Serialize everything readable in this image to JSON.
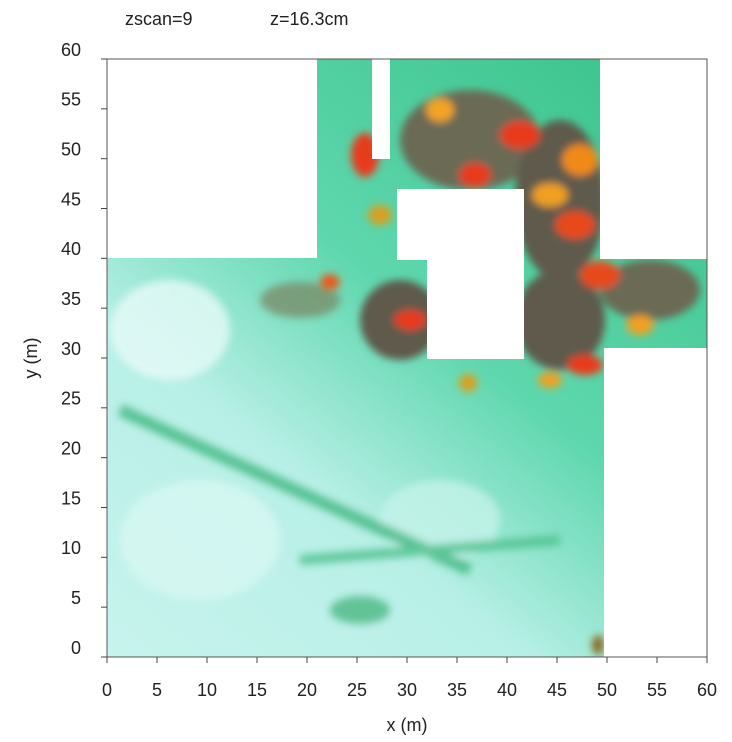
{
  "chart_data": {
    "type": "heatmap",
    "title": "zscan=9",
    "subtitle": "z=16.3cm",
    "x_label": "x (m)",
    "y_label": "y (m)",
    "xlim": [
      0,
      60
    ],
    "ylim": [
      0,
      60
    ],
    "xticks": [
      0,
      5,
      10,
      15,
      20,
      25,
      30,
      35,
      40,
      45,
      50,
      55,
      60
    ],
    "yticks": [
      0,
      5,
      10,
      15,
      20,
      25,
      30,
      35,
      40,
      45,
      50,
      55,
      60
    ]
  }
}
